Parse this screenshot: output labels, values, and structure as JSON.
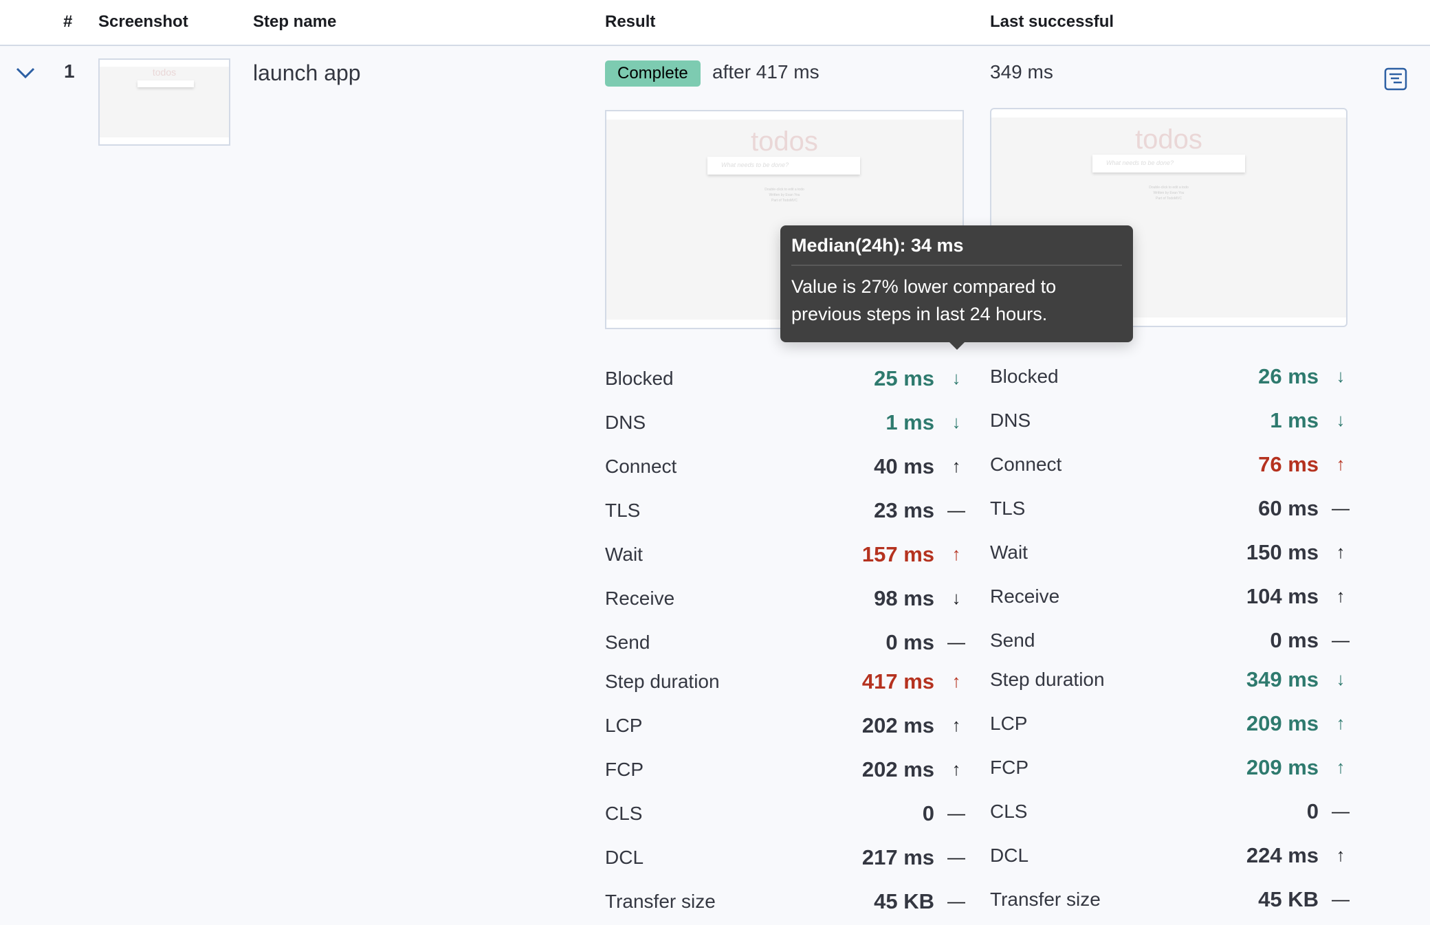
{
  "table": {
    "headers": {
      "index": "#",
      "screenshot": "Screenshot",
      "step_name": "Step name",
      "result": "Result",
      "last_successful": "Last successful"
    },
    "row": {
      "index": "1",
      "step_name": "launch app",
      "status": "Complete",
      "duration_text": "after 417 ms",
      "last_successful": "349 ms"
    }
  },
  "screenshot": {
    "title": "todos",
    "placeholder": "What needs to be done?",
    "footer": [
      "Double-click to edit a todo",
      "Written by Evan You",
      "Part of TodoMVC"
    ]
  },
  "tooltip": {
    "title": "Median(24h): 34 ms",
    "body": "Value is 27% lower compared to previous steps in last 24 hours."
  },
  "colors": {
    "good": "#2e7a6e",
    "bad": "#b5321f",
    "neutral": "#343741",
    "accent": "#2c5fa3",
    "badge": "#7dcbb1"
  },
  "metrics": {
    "current": [
      {
        "label": "Blocked",
        "value": "25 ms",
        "trend": "down",
        "status": "good"
      },
      {
        "label": "DNS",
        "value": "1 ms",
        "trend": "down",
        "status": "good"
      },
      {
        "label": "Connect",
        "value": "40 ms",
        "trend": "up",
        "status": "neutral"
      },
      {
        "label": "TLS",
        "value": "23 ms",
        "trend": "flat",
        "status": "neutral"
      },
      {
        "label": "Wait",
        "value": "157 ms",
        "trend": "up",
        "status": "bad"
      },
      {
        "label": "Receive",
        "value": "98 ms",
        "trend": "down",
        "status": "neutral"
      },
      {
        "label": "Send",
        "value": "0 ms",
        "trend": "flat",
        "status": "neutral"
      },
      {
        "label": "Step duration",
        "value": "417 ms",
        "trend": "up",
        "status": "bad"
      },
      {
        "label": "LCP",
        "value": "202 ms",
        "trend": "up",
        "status": "neutral"
      },
      {
        "label": "FCP",
        "value": "202 ms",
        "trend": "up",
        "status": "neutral"
      },
      {
        "label": "CLS",
        "value": "0",
        "trend": "flat",
        "status": "neutral"
      },
      {
        "label": "DCL",
        "value": "217 ms",
        "trend": "flat",
        "status": "neutral"
      },
      {
        "label": "Transfer size",
        "value": "45 KB",
        "trend": "flat",
        "status": "neutral"
      }
    ],
    "last_successful": [
      {
        "label": "Blocked",
        "value": "26 ms",
        "trend": "down",
        "status": "good"
      },
      {
        "label": "DNS",
        "value": "1 ms",
        "trend": "down",
        "status": "good"
      },
      {
        "label": "Connect",
        "value": "76 ms",
        "trend": "up",
        "status": "bad"
      },
      {
        "label": "TLS",
        "value": "60 ms",
        "trend": "flat",
        "status": "neutral"
      },
      {
        "label": "Wait",
        "value": "150 ms",
        "trend": "up",
        "status": "neutral"
      },
      {
        "label": "Receive",
        "value": "104 ms",
        "trend": "up",
        "status": "neutral"
      },
      {
        "label": "Send",
        "value": "0 ms",
        "trend": "flat",
        "status": "neutral"
      },
      {
        "label": "Step duration",
        "value": "349 ms",
        "trend": "down",
        "status": "good"
      },
      {
        "label": "LCP",
        "value": "209 ms",
        "trend": "up",
        "status": "good"
      },
      {
        "label": "FCP",
        "value": "209 ms",
        "trend": "up",
        "status": "good"
      },
      {
        "label": "CLS",
        "value": "0",
        "trend": "flat",
        "status": "neutral"
      },
      {
        "label": "DCL",
        "value": "224 ms",
        "trend": "up",
        "status": "neutral"
      },
      {
        "label": "Transfer size",
        "value": "45 KB",
        "trend": "flat",
        "status": "neutral"
      }
    ]
  }
}
